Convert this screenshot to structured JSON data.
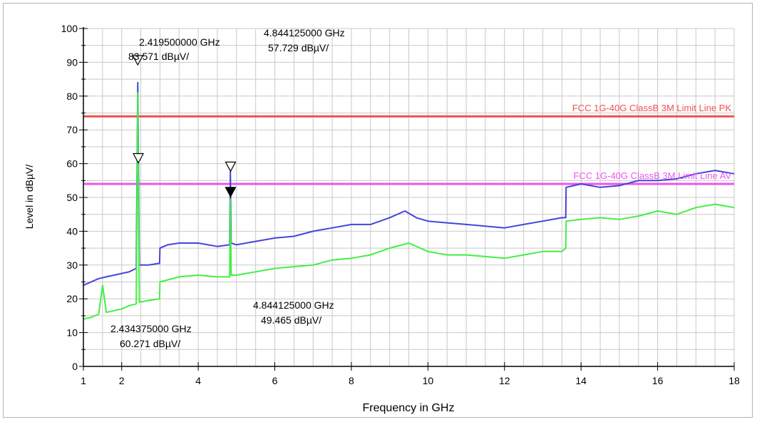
{
  "chart_data": {
    "type": "line",
    "title": "",
    "xlabel": "Frequency in GHz",
    "ylabel": "Level in dBµV/",
    "xlim": [
      1,
      18
    ],
    "ylim": [
      0,
      100
    ],
    "x_ticks": [
      1,
      2,
      4,
      6,
      8,
      10,
      12,
      14,
      16,
      18
    ],
    "x_tick_labels": [
      "1",
      "2",
      "4",
      "6",
      "8",
      "10",
      "12",
      "14",
      "16",
      "18"
    ],
    "y_ticks": [
      0,
      10,
      20,
      30,
      40,
      50,
      60,
      70,
      80,
      90,
      100
    ],
    "y_tick_labels": [
      "0",
      "10",
      "20",
      "30",
      "40",
      "50",
      "60",
      "70",
      "80",
      "90",
      "100"
    ],
    "grid": true,
    "limit_lines": [
      {
        "label": "FCC 1G-40G ClassB 3M Limit Line PK",
        "value": 74,
        "color": "#f05050"
      },
      {
        "label": "FCC 1G-40G ClassB 3M Limit Line AV",
        "value": 54,
        "color": "#ee55ee"
      }
    ],
    "series": [
      {
        "color": "#4444dd",
        "x": [
          1.0,
          1.2,
          1.4,
          1.6,
          1.8,
          2.0,
          2.2,
          2.38,
          2.42,
          2.46,
          2.7,
          2.99,
          3.0,
          3.2,
          3.5,
          4.0,
          4.5,
          4.82,
          4.84,
          4.86,
          5.0,
          5.5,
          6.0,
          6.5,
          7.0,
          7.5,
          8.0,
          8.5,
          9.0,
          9.4,
          9.7,
          10.0,
          10.5,
          11.0,
          11.5,
          12.0,
          12.5,
          13.0,
          13.5,
          13.6,
          13.61,
          14.0,
          14.5,
          15.0,
          15.5,
          16.0,
          16.5,
          17.0,
          17.5,
          18.0
        ],
        "y": [
          24,
          25,
          26,
          26.5,
          27,
          27.5,
          28,
          29,
          84,
          30,
          30,
          30.5,
          35,
          36,
          36.5,
          36.5,
          35.5,
          36,
          57.7,
          36.5,
          36,
          37,
          38,
          38.5,
          40,
          41,
          42,
          42,
          44,
          46,
          44,
          43,
          42.5,
          42,
          41.5,
          41,
          42,
          43,
          44,
          44,
          53,
          54,
          53,
          53.5,
          55,
          55,
          55.5,
          57,
          58,
          57
        ]
      },
      {
        "color": "#44ee44",
        "x": [
          1.0,
          1.2,
          1.4,
          1.5,
          1.6,
          1.8,
          2.0,
          2.2,
          2.38,
          2.42,
          2.43,
          2.46,
          2.7,
          2.99,
          3.0,
          3.5,
          4.0,
          4.5,
          4.82,
          4.84,
          4.86,
          5.0,
          5.5,
          6.0,
          7.0,
          7.5,
          8.0,
          8.5,
          9.0,
          9.5,
          10.0,
          10.5,
          11.0,
          11.5,
          12.0,
          12.5,
          13.0,
          13.5,
          13.6,
          13.61,
          14.0,
          14.5,
          15.0,
          15.5,
          16.0,
          16.5,
          17.0,
          17.5,
          18.0
        ],
        "y": [
          14,
          14.5,
          15.5,
          24,
          16,
          16.5,
          17,
          18,
          18.5,
          81,
          60.3,
          19,
          19.5,
          20,
          25,
          26.5,
          27,
          26.5,
          26.5,
          49.5,
          27,
          27,
          28,
          29,
          30,
          31.5,
          32,
          33,
          35,
          36.5,
          34,
          33,
          33,
          32.5,
          32,
          33,
          34,
          34,
          35,
          43,
          43.5,
          44,
          43.5,
          44.5,
          46,
          45,
          47,
          48,
          47
        ]
      }
    ],
    "markers": [
      {
        "label_freq": "2.419500000 GHz",
        "label_level": "83.571 dBµV/",
        "x": 2.4195,
        "y": 90.5,
        "filled": false
      },
      {
        "label_freq": "2.434375000 GHz",
        "label_level": "60.271 dBµV/",
        "x": 2.434,
        "y": 61.5,
        "filled": false
      },
      {
        "label_freq": "4.844125000 GHz",
        "label_level": "57.729 dBµV/",
        "x": 4.844,
        "y": 59,
        "filled": false
      },
      {
        "label_freq": "4.844125000 GHz",
        "label_level": "49.465 dBµV/",
        "x": 4.844,
        "y": 51.5,
        "filled": true
      }
    ]
  }
}
